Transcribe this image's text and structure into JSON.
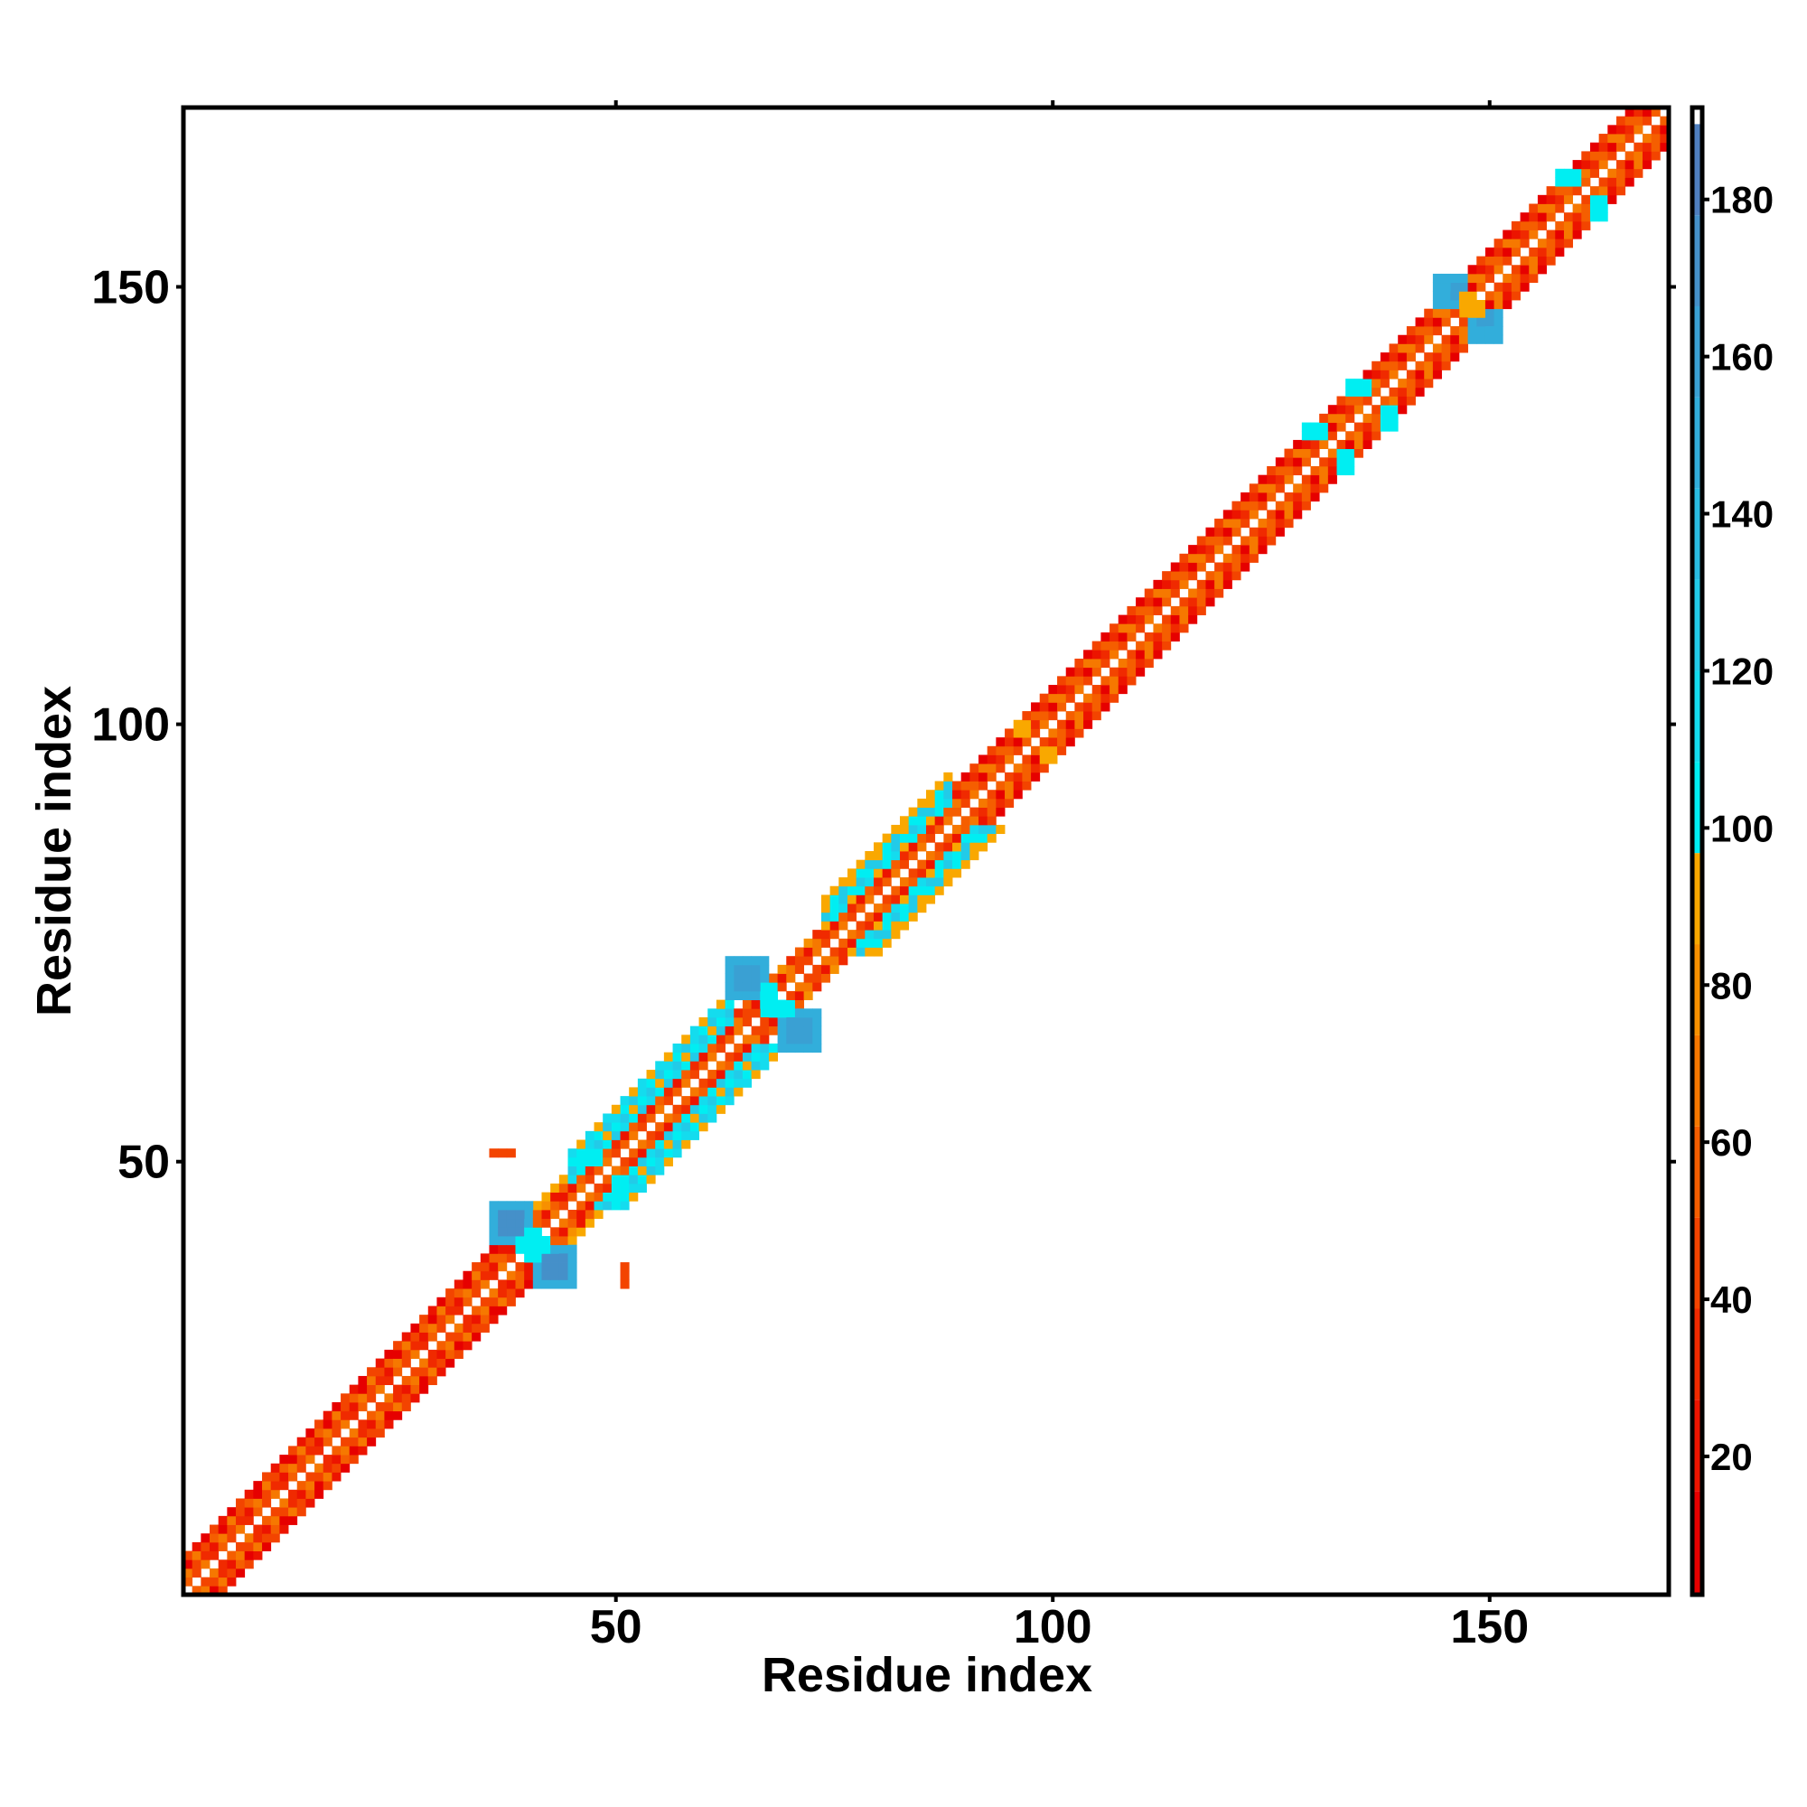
{
  "chart_data": {
    "type": "heatmap",
    "title": "",
    "xlabel": "Residue index",
    "ylabel": "Residue index",
    "n_residues": 170,
    "xlim": [
      0.5,
      170.5
    ],
    "ylim": [
      0.5,
      170.5
    ],
    "x_ticks": [
      50,
      100,
      150
    ],
    "y_ticks": [
      50,
      100,
      150
    ],
    "x_tick_labels": [
      "50",
      "100",
      "150"
    ],
    "y_tick_labels": [
      "50",
      "100",
      "150"
    ],
    "symmetric": true,
    "diagonal_value": 190,
    "colorbar": {
      "range": [
        2.4,
        191.7
      ],
      "ticks": [
        20,
        40,
        60,
        80,
        100,
        120,
        140,
        160,
        180
      ],
      "tick_labels": [
        "20",
        "40",
        "60",
        "80",
        "100",
        "120",
        "140",
        "160",
        "180"
      ],
      "bin_edges_start": 4,
      "bin_width": 11.6,
      "colors": [
        "#e60000",
        "#ec1400",
        "#f02a00",
        "#f34400",
        "#f55e00",
        "#f67800",
        "#f79000",
        "#f9a800",
        "#00eef2",
        "#14dcee",
        "#22cbe8",
        "#2abce2",
        "#32aedb",
        "#3aa0d3",
        "#4590c9",
        "#4f7fbf",
        "#ffffff"
      ]
    },
    "band_segments": [
      {
        "from": 1,
        "to": 36,
        "offsets": [
          [
            35,
            55,
            45,
            65
          ],
          [
            20,
            70,
            45,
            30
          ],
          [
            60,
            15,
            70,
            40
          ],
          [
            10,
            45,
            25
          ]
        ]
      },
      {
        "from": 37,
        "to": 44,
        "offsets": [
          [
            50,
            70,
            40
          ],
          [
            25,
            60
          ],
          [
            75,
            20,
            55
          ],
          [
            95
          ]
        ]
      },
      {
        "from": 45,
        "to": 63,
        "offsets": [
          [
            55,
            70,
            45
          ],
          [
            20,
            60,
            35
          ],
          [
            110,
            100,
            125
          ],
          [
            120,
            95,
            105
          ],
          [
            100,
            130,
            110
          ],
          [
            95,
            115
          ]
        ]
      },
      {
        "from": 64,
        "to": 73,
        "offsets": [
          [
            50,
            70,
            40
          ],
          [
            20,
            65,
            45
          ],
          [
            75,
            35,
            60
          ]
        ]
      },
      {
        "from": 74,
        "to": 88,
        "offsets": [
          [
            55,
            70,
            45
          ],
          [
            20,
            60,
            35
          ],
          [
            100,
            115,
            95
          ],
          [
            120,
            100
          ],
          [
            105,
            130,
            95
          ],
          [
            95
          ]
        ]
      },
      {
        "from": 89,
        "to": 170,
        "offsets": [
          [
            40,
            60,
            50,
            70
          ],
          [
            15,
            65,
            35,
            55
          ],
          [
            70,
            20,
            60,
            30
          ],
          [
            10,
            50
          ]
        ]
      }
    ],
    "patches": [
      {
        "x": [
          36,
          40
        ],
        "y": [
          41,
          45
        ],
        "value": 150
      },
      {
        "x": [
          37,
          39
        ],
        "y": [
          42,
          44
        ],
        "value": 170
      },
      {
        "x": [
          40,
          41
        ],
        "y": [
          39,
          42
        ],
        "value": 100
      },
      {
        "x": [
          63,
          67
        ],
        "y": [
          69,
          73
        ],
        "value": 150
      },
      {
        "x": [
          64,
          66
        ],
        "y": [
          70,
          72
        ],
        "value": 165
      },
      {
        "x": [
          67,
          68
        ],
        "y": [
          67,
          70
        ],
        "value": 100
      },
      {
        "x": [
          144,
          147
        ],
        "y": [
          148,
          151
        ],
        "value": 150
      },
      {
        "x": [
          146,
          147
        ],
        "y": [
          149,
          150
        ],
        "value": 165
      },
      {
        "x": [
          147,
          148
        ],
        "y": [
          147,
          149
        ],
        "value": 95
      },
      {
        "x": [
          36,
          38
        ],
        "y": [
          51,
          51
        ],
        "value": 45
      },
      {
        "x": [
          46,
          48
        ],
        "y": [
          50,
          51
        ],
        "value": 100
      },
      {
        "x": [
          129,
          131
        ],
        "y": [
          133,
          134
        ],
        "value": 98
      },
      {
        "x": [
          134,
          136
        ],
        "y": [
          138,
          139
        ],
        "value": 105
      },
      {
        "x": [
          158,
          160
        ],
        "y": [
          162,
          163
        ],
        "value": 100
      },
      {
        "x": [
          96,
          97
        ],
        "y": [
          99,
          100
        ],
        "value": 95
      }
    ]
  }
}
